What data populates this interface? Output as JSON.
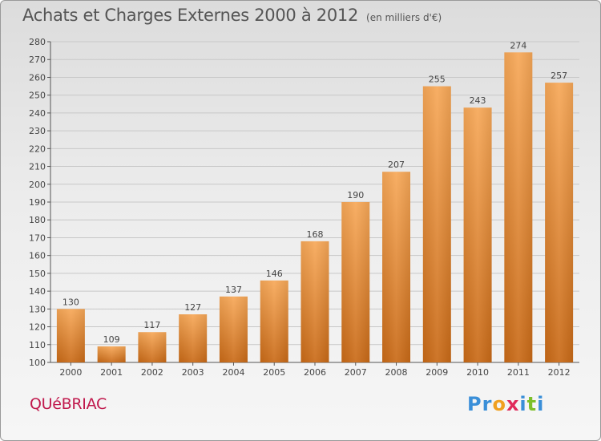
{
  "header": {
    "title": "Achats et Charges Externes 2000 à 2012",
    "subtitle": "(en milliers d'€)"
  },
  "footer": {
    "commune": "QUéBRIAC",
    "logo_letters": [
      "P",
      "r",
      "o",
      "x",
      "i",
      "t",
      "i"
    ],
    "logo_colors": [
      "#3a8fd8",
      "#3a8fd8",
      "#f0a020",
      "#e02a5a",
      "#3a8fd8",
      "#7cbf2a",
      "#3a8fd8"
    ]
  },
  "colors": {
    "bar_top": "#f7a858",
    "bar_bottom": "#c96a17",
    "axis": "#555555",
    "grid": "#c8c8c8"
  },
  "chart_data": {
    "type": "bar",
    "categories": [
      "2000",
      "2001",
      "2002",
      "2003",
      "2004",
      "2005",
      "2006",
      "2007",
      "2008",
      "2009",
      "2010",
      "2011",
      "2012"
    ],
    "values": [
      130,
      109,
      117,
      127,
      137,
      146,
      168,
      190,
      207,
      255,
      243,
      274,
      257
    ],
    "ylim": [
      100,
      280
    ],
    "yticks": [
      100,
      110,
      120,
      130,
      140,
      150,
      160,
      170,
      180,
      190,
      200,
      210,
      220,
      230,
      240,
      250,
      260,
      270,
      280
    ],
    "grid": true
  }
}
